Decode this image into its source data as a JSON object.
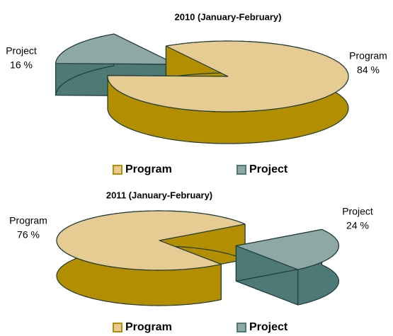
{
  "chart_data": [
    {
      "type": "pie",
      "title": "2010 (January-February)",
      "categories": [
        "Program",
        "Project"
      ],
      "values": [
        84,
        16
      ],
      "value_labels": [
        "84 %",
        "16 %"
      ],
      "colors": [
        "#e6cc93",
        "#8ea8a5"
      ],
      "side_colors": [
        "#b38f00",
        "#4d7a77"
      ],
      "legend": "bottom"
    },
    {
      "type": "pie",
      "title": "2011 (January-February)",
      "categories": [
        "Program",
        "Project"
      ],
      "values": [
        76,
        24
      ],
      "value_labels": [
        "76 %",
        "24 %"
      ],
      "colors": [
        "#e6cc93",
        "#8ea8a5"
      ],
      "side_colors": [
        "#b38f00",
        "#4d7a77"
      ],
      "legend": "bottom"
    }
  ]
}
